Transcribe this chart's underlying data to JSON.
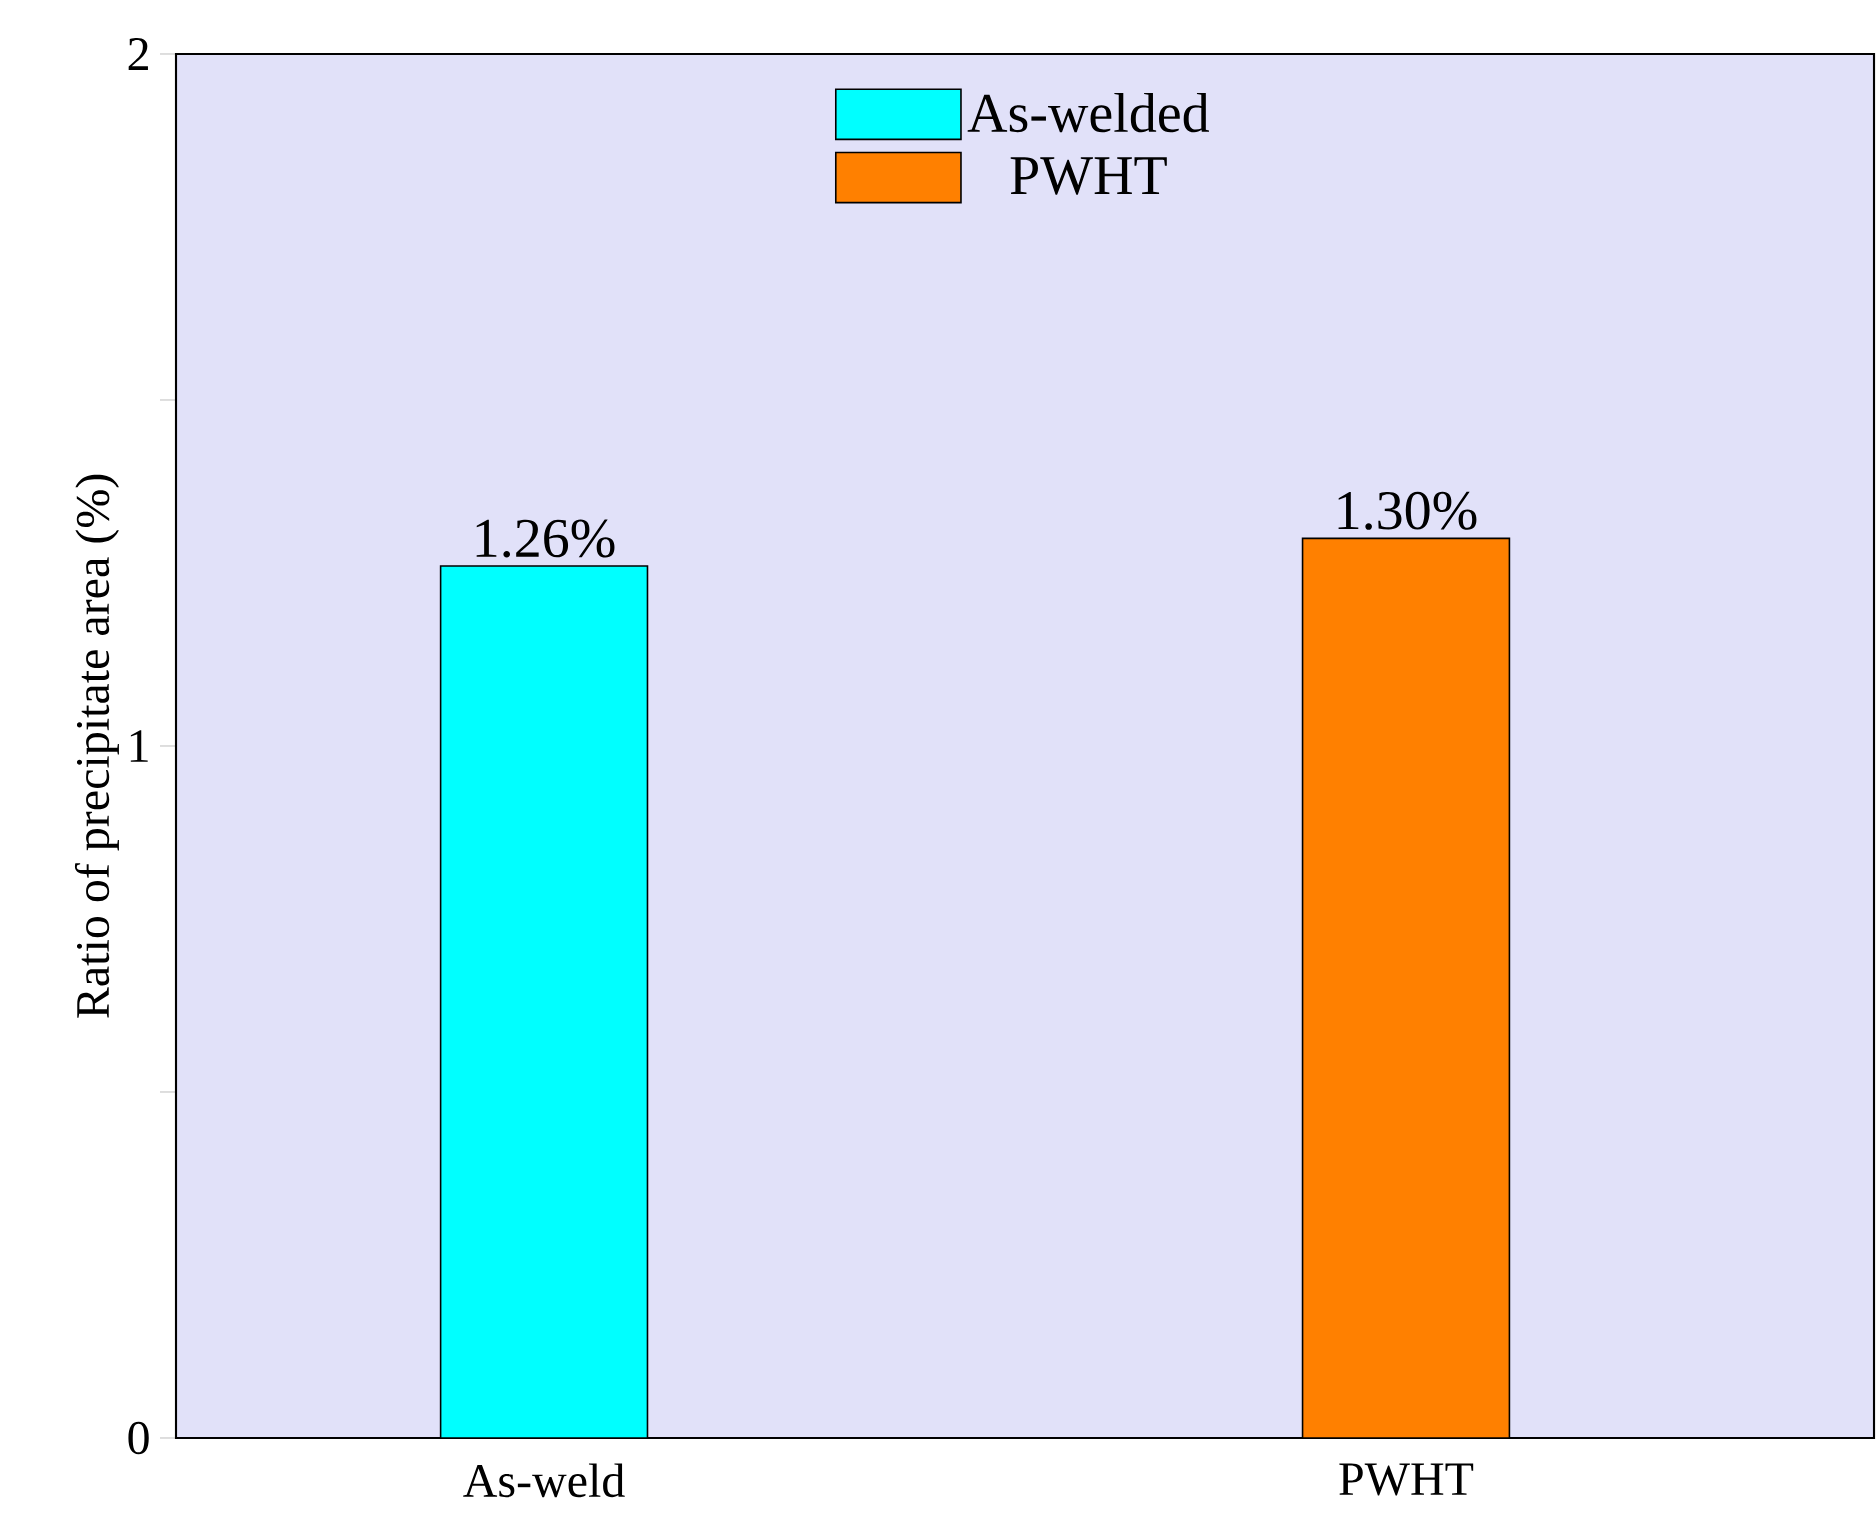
{
  "chart_data": {
    "type": "bar",
    "ylabel": "Ratio of precipitate area (%)",
    "categories": [
      "As-weld",
      "PWHT"
    ],
    "series": [
      {
        "name": "As-welded",
        "color": "#00ffff",
        "values": [
          1.26,
          null
        ],
        "value_labels": [
          "1.26%",
          null
        ]
      },
      {
        "name": "PWHT",
        "color": "#ff8000",
        "values": [
          null,
          1.3
        ],
        "value_labels": [
          null,
          "1.30%"
        ]
      }
    ],
    "ylim": [
      0,
      2
    ],
    "yticks": [
      0,
      {
        "value": 0.5,
        "label": null
      },
      1,
      {
        "value": 1.5,
        "label": null
      },
      2
    ],
    "legend": "top",
    "grid": false
  }
}
